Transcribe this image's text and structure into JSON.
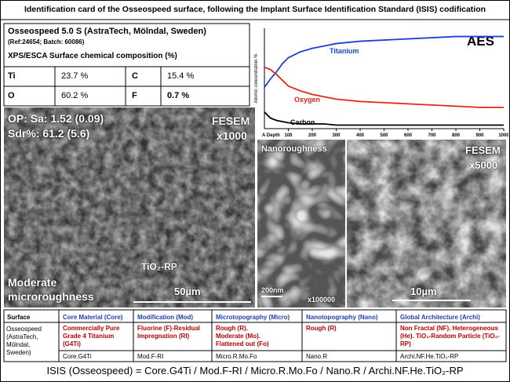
{
  "header": {
    "title": "Identification card of the Osseospeed surface, following the Implant Surface Identification Standard (ISIS) codification"
  },
  "composition": {
    "product": "Osseospeed 5.0 S (AstraTech, Mölndal, Sweden)",
    "ref": "(Ref:24654; Batch: 60086)",
    "caption": "XPS/ESCA Surface chemical composition (%)",
    "rows": [
      [
        "Ti",
        "23.7 %",
        "C",
        "15.4 %"
      ],
      [
        "O",
        "60.2 %",
        "F",
        "0.7 %"
      ]
    ]
  },
  "aes_chart": {
    "type": "line",
    "title": "AES",
    "y_label": "Atomic concentration %",
    "x_label": "A Depth",
    "x": [
      0,
      25,
      50,
      75,
      100,
      150,
      200,
      250,
      300,
      400,
      500,
      600,
      700,
      800,
      900,
      1000
    ],
    "xlim": [
      0,
      1000
    ],
    "xticks": [
      100,
      200,
      300,
      400,
      500,
      600,
      700,
      800,
      900,
      1000
    ],
    "ylim": [
      0,
      85
    ],
    "series": [
      {
        "name": "Titanium",
        "color": "#1f3fd6",
        "values": [
          35,
          42,
          48,
          55,
          60,
          65,
          68,
          70,
          72,
          74,
          75,
          76,
          77,
          78,
          78,
          78
        ]
      },
      {
        "name": "Oxygen",
        "color": "#e0261b",
        "values": [
          52,
          50,
          46,
          41,
          36,
          32,
          29,
          27,
          25,
          23,
          22,
          21,
          20,
          19,
          18,
          18
        ]
      },
      {
        "name": "Carbon",
        "color": "#000000",
        "values": [
          14,
          9,
          7,
          6,
          5,
          4,
          4,
          4,
          3,
          3,
          3,
          3,
          3,
          3,
          3,
          3
        ]
      }
    ]
  },
  "images": {
    "main": {
      "roughness": "OP: Sa: 1.52 (0.09)",
      "sdr": "Sdr%: 61.2 (5.6)",
      "method": "FESEM",
      "magnification": "x1000",
      "particle": "TiO₂-RP",
      "classification": [
        "Moderate",
        "microroughness"
      ],
      "scale": "50µm"
    },
    "nano": {
      "title": "Nanoroughness",
      "scale": "200nm",
      "magnification": "x100000"
    },
    "high": {
      "method": "FESEM",
      "magnification": "x5000",
      "scale": "10µm"
    }
  },
  "table": {
    "headers": [
      "Surface",
      "Core Material (Core)",
      "Modification (Mod)",
      "Microtopography (Micro)",
      "Nanotopography (Nano)",
      "Global Architecture (Archi)"
    ],
    "surface": "Osseospeed (AstraTech, Mölndal, Sweden)",
    "descriptions": [
      "Commercially Pure Grade 4 Titanium (G4Ti)",
      "Fluorine (F)-Residual Impregnation (RI)",
      "Rough (R). Moderate (Mo). Flattened out (Fo)",
      "Rough (R)",
      "Non Fractal (NF). Heterogeneous (He). TiO₂-Random Particle (TiO₂-RP)"
    ],
    "codes": [
      "Core.G4Ti",
      "Mod.F-RI",
      "Micro.R.Mo.Fo",
      "Nano.R",
      "Archi.NF.He.TiO₂-RP"
    ]
  },
  "footer": "ISIS (Osseospeed) = Core.G4Ti / Mod.F-RI / Micro.R.Mo.Fo / Nano.R / Archi.NF.He.TiO₂-RP"
}
